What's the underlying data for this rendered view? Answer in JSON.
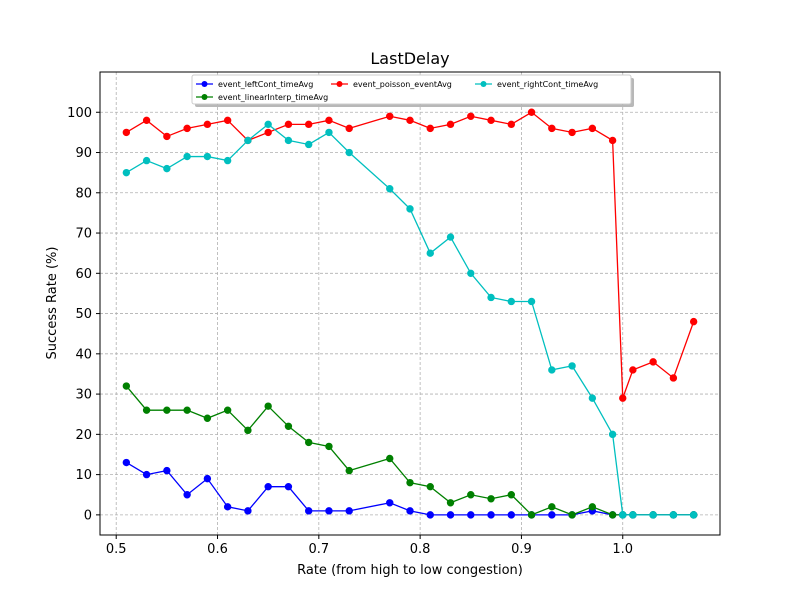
{
  "chart_data": {
    "type": "line",
    "title": "LastDelay",
    "xlabel": "Rate (from high to low congestion)",
    "ylabel": "Success Rate (%)",
    "xlim": [
      0.484,
      1.096
    ],
    "ylim": [
      -5,
      110
    ],
    "xticks": [
      0.5,
      0.6,
      0.7,
      0.8,
      0.9,
      1.0
    ],
    "xtick_labels": [
      "0.5",
      "0.6",
      "0.7",
      "0.8",
      "0.9",
      "1.0"
    ],
    "yticks": [
      0,
      10,
      20,
      30,
      40,
      50,
      60,
      70,
      80,
      90,
      100
    ],
    "ytick_labels": [
      "0",
      "10",
      "20",
      "30",
      "40",
      "50",
      "60",
      "70",
      "80",
      "90",
      "100"
    ],
    "grid": true,
    "legend_position": "top-center",
    "series": [
      {
        "name": "event_leftCont_timeAvg",
        "color": "#0000ff",
        "x": [
          0.51,
          0.53,
          0.55,
          0.57,
          0.59,
          0.61,
          0.63,
          0.65,
          0.67,
          0.69,
          0.71,
          0.73,
          0.77,
          0.79,
          0.81,
          0.83,
          0.85,
          0.87,
          0.89,
          0.91,
          0.93,
          0.95,
          0.97,
          0.99,
          1.0,
          1.01,
          1.03,
          1.05,
          1.07
        ],
        "y": [
          13,
          10,
          11,
          5,
          9,
          2,
          1,
          7,
          7,
          1,
          1,
          1,
          3,
          1,
          0,
          0,
          0,
          0,
          0,
          0,
          0,
          0,
          1,
          0,
          0,
          0,
          0,
          0,
          0
        ]
      },
      {
        "name": "event_linearInterp_timeAvg",
        "color": "#008000",
        "x": [
          0.51,
          0.53,
          0.55,
          0.57,
          0.59,
          0.61,
          0.63,
          0.65,
          0.67,
          0.69,
          0.71,
          0.73,
          0.77,
          0.79,
          0.81,
          0.83,
          0.85,
          0.87,
          0.89,
          0.91,
          0.93,
          0.95,
          0.97,
          0.99,
          1.0,
          1.01,
          1.03,
          1.05,
          1.07
        ],
        "y": [
          32,
          26,
          26,
          26,
          24,
          26,
          21,
          27,
          22,
          18,
          17,
          11,
          14,
          8,
          7,
          3,
          5,
          4,
          5,
          0,
          2,
          0,
          2,
          0,
          0,
          0,
          0,
          0,
          0
        ]
      },
      {
        "name": "event_poisson_eventAvg",
        "color": "#ff0000",
        "x": [
          0.51,
          0.53,
          0.55,
          0.57,
          0.59,
          0.61,
          0.63,
          0.65,
          0.67,
          0.69,
          0.71,
          0.73,
          0.77,
          0.79,
          0.81,
          0.83,
          0.85,
          0.87,
          0.89,
          0.91,
          0.93,
          0.95,
          0.97,
          0.99,
          1.0,
          1.01,
          1.03,
          1.05,
          1.07
        ],
        "y": [
          95,
          98,
          94,
          96,
          97,
          98,
          93,
          95,
          97,
          97,
          98,
          96,
          99,
          98,
          96,
          97,
          99,
          98,
          97,
          100,
          96,
          95,
          96,
          93,
          29,
          36,
          38,
          34,
          48
        ]
      },
      {
        "name": "event_rightCont_timeAvg",
        "color": "#00bfbf",
        "x": [
          0.51,
          0.53,
          0.55,
          0.57,
          0.59,
          0.61,
          0.63,
          0.65,
          0.67,
          0.69,
          0.71,
          0.73,
          0.77,
          0.79,
          0.81,
          0.83,
          0.85,
          0.87,
          0.89,
          0.91,
          0.93,
          0.95,
          0.97,
          0.99,
          1.0,
          1.01,
          1.03,
          1.05,
          1.07
        ],
        "y": [
          85,
          88,
          86,
          89,
          89,
          88,
          93,
          97,
          93,
          92,
          95,
          90,
          81,
          76,
          65,
          69,
          60,
          54,
          53,
          53,
          36,
          37,
          29,
          20,
          0,
          0,
          0,
          0,
          0
        ]
      }
    ]
  }
}
